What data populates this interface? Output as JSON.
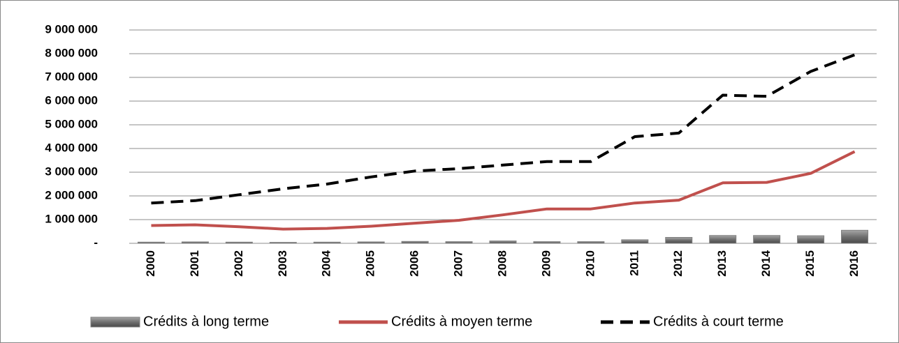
{
  "chart_data": {
    "type": "bar_line",
    "categories": [
      "2000",
      "2001",
      "2002",
      "2003",
      "2004",
      "2005",
      "2006",
      "2007",
      "2008",
      "2009",
      "2010",
      "2011",
      "2012",
      "2013",
      "2014",
      "2015",
      "2016"
    ],
    "series": [
      {
        "name": "Crédits à long terme",
        "type": "bar",
        "color": "#7f7f7f",
        "values": [
          50000,
          60000,
          50000,
          40000,
          50000,
          60000,
          80000,
          70000,
          100000,
          70000,
          70000,
          150000,
          250000,
          330000,
          330000,
          320000,
          550000
        ]
      },
      {
        "name": "Crédits à moyen terme",
        "type": "line",
        "color": "#c0504d",
        "values": [
          750000,
          780000,
          700000,
          600000,
          630000,
          720000,
          850000,
          970000,
          1200000,
          1450000,
          1450000,
          1700000,
          1820000,
          2550000,
          2570000,
          2950000,
          3870000
        ]
      },
      {
        "name": "Crédits à court terme",
        "type": "line",
        "dashed": true,
        "color": "#000000",
        "values": [
          1700000,
          1800000,
          2050000,
          2300000,
          2500000,
          2800000,
          3050000,
          3150000,
          3300000,
          3450000,
          3450000,
          4500000,
          4650000,
          6250000,
          6200000,
          7250000,
          7950000
        ]
      }
    ],
    "ylim": [
      0,
      9000000
    ],
    "yticks": [
      {
        "value": 0,
        "label": "-"
      },
      {
        "value": 1000000,
        "label": "1 000 000"
      },
      {
        "value": 2000000,
        "label": "2 000 000"
      },
      {
        "value": 3000000,
        "label": "3 000 000"
      },
      {
        "value": 4000000,
        "label": "4 000 000"
      },
      {
        "value": 5000000,
        "label": "5 000 000"
      },
      {
        "value": 6000000,
        "label": "6 000 000"
      },
      {
        "value": 7000000,
        "label": "7 000 000"
      },
      {
        "value": 8000000,
        "label": "8 000 000"
      },
      {
        "value": 9000000,
        "label": "9 000 000"
      }
    ],
    "grid": true,
    "legend": "bottom"
  }
}
